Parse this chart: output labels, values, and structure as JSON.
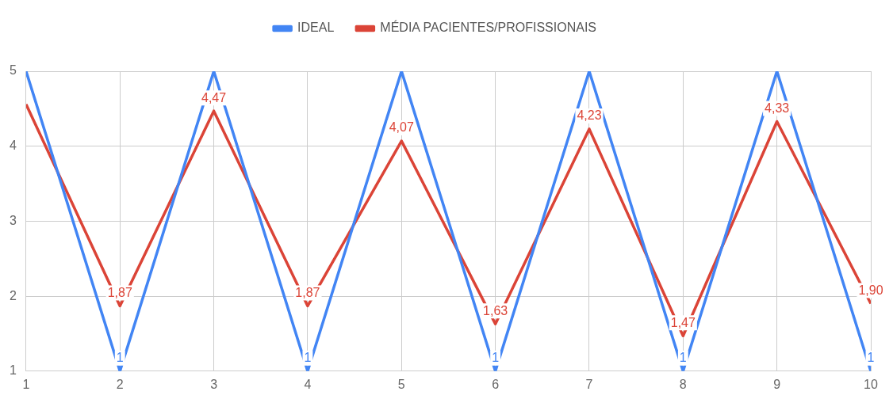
{
  "chart_data": {
    "type": "line",
    "x": [
      1,
      2,
      3,
      4,
      5,
      6,
      7,
      8,
      9,
      10
    ],
    "xlim": [
      1,
      10
    ],
    "xticks": [
      1,
      2,
      3,
      4,
      5,
      6,
      7,
      8,
      9,
      10
    ],
    "ylim": [
      1,
      5
    ],
    "yticks": [
      1,
      2,
      3,
      4,
      5
    ],
    "grid": true,
    "legend": "top",
    "marker": "none",
    "line_style": "solid",
    "series": [
      {
        "name": "IDEAL",
        "color": "#4285f4",
        "values": [
          5,
          1,
          5,
          1,
          5,
          1,
          5,
          1,
          5,
          1
        ],
        "value_labels": [
          null,
          "1",
          null,
          "1",
          null,
          "1",
          null,
          "1",
          null,
          "1"
        ]
      },
      {
        "name": "MÉDIA PACIENTES/PROFISSIONAIS",
        "color": "#db4437",
        "values": [
          4.56,
          1.87,
          4.47,
          1.87,
          4.07,
          1.63,
          4.23,
          1.47,
          4.33,
          1.9
        ],
        "value_labels": [
          null,
          "1,87",
          "4,47",
          "1,87",
          "4,07",
          "1,63",
          "4,23",
          "1,47",
          "4,33",
          "1,90"
        ]
      }
    ]
  }
}
